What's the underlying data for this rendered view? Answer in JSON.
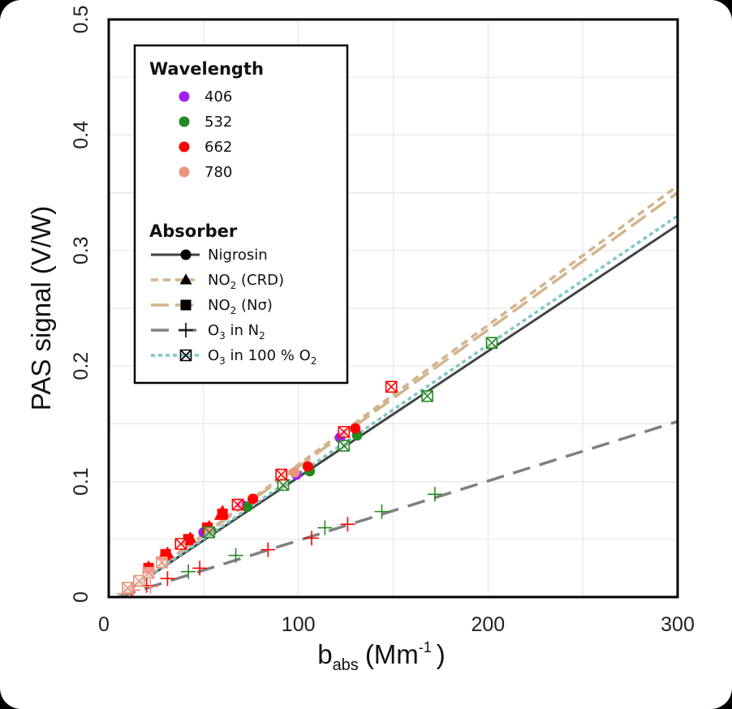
{
  "chart_data": {
    "type": "scatter",
    "xlabel": "b",
    "xlabel_sub": "abs",
    "xlabel_unit_prefix": "(Mm",
    "xlabel_unit_sup": "-1",
    "xlabel_unit_suffix": ")",
    "ylabel": "PAS signal (V/W)",
    "xlim": [
      0,
      300
    ],
    "ylim": [
      0,
      0.5
    ],
    "x_ticks": [
      "0",
      "100",
      "200",
      "300"
    ],
    "y_ticks": [
      "0",
      "0.1",
      "0.2",
      "0.3",
      "0.4",
      "0.5"
    ],
    "x_tick_values": [
      0,
      100,
      200,
      300
    ],
    "y_tick_values": [
      0,
      0.1,
      0.2,
      0.3,
      0.4,
      0.5
    ],
    "grid": true,
    "legend_placement": "top-left",
    "colors": {
      "406": "#a020f0",
      "532": "#228b22",
      "662": "#ff0000",
      "780": "#e9967a",
      "nigrosin_line": "#444444",
      "no2_line": "#d2b48c",
      "o3_n2_line": "#808080",
      "o3_o2_line": "#7ec8c8"
    },
    "legend": {
      "wavelength_title": "Wavelength",
      "wavelengths": [
        "406",
        "532",
        "662",
        "780"
      ],
      "absorber_title": "Absorber",
      "absorbers": [
        {
          "key": "nigrosin",
          "label": "Nigrosin"
        },
        {
          "key": "no2_crd",
          "label_main": "NO",
          "label_sub": "2",
          "label_rest": " (CRD)"
        },
        {
          "key": "no2_ns",
          "label_main": "NO",
          "label_sub": "2",
          "label_rest": " (Nσ)"
        },
        {
          "key": "o3_n2",
          "label_main": "O",
          "label_sub": "3",
          "label_mid": " in N",
          "label_sub2": "2"
        },
        {
          "key": "o3_o2",
          "label_main": "O",
          "label_sub": "3",
          "label_mid": " in 100 % O",
          "label_sub2": "2"
        }
      ]
    },
    "fit_lines": [
      {
        "absorber": "nigrosin",
        "style": "solid",
        "x": [
          5,
          300
        ],
        "y": [
          0.0,
          0.322
        ]
      },
      {
        "absorber": "no2_crd",
        "style": "dashed",
        "x": [
          5,
          300
        ],
        "y": [
          0.0,
          0.356
        ]
      },
      {
        "absorber": "no2_ns",
        "style": "longdash",
        "x": [
          5,
          300
        ],
        "y": [
          0.0,
          0.35
        ]
      },
      {
        "absorber": "o3_n2",
        "style": "longdash",
        "x": [
          5,
          300
        ],
        "y": [
          0.0,
          0.152
        ]
      },
      {
        "absorber": "o3_o2",
        "style": "dotted",
        "x": [
          5,
          300
        ],
        "y": [
          0.0,
          0.33
        ]
      }
    ],
    "series": [
      {
        "absorber": "nigrosin",
        "wavelength": "406",
        "x": [
          50,
          70,
          99,
          122
        ],
        "y": [
          0.056,
          0.08,
          0.106,
          0.138
        ]
      },
      {
        "absorber": "nigrosin",
        "wavelength": "532",
        "x": [
          54,
          73,
          106,
          131
        ],
        "y": [
          0.057,
          0.078,
          0.109,
          0.14
        ]
      },
      {
        "absorber": "nigrosin",
        "wavelength": "662",
        "x": [
          76,
          105,
          130
        ],
        "y": [
          0.085,
          0.113,
          0.146
        ]
      },
      {
        "absorber": "nigrosin",
        "wavelength": "780",
        "x": [
          98
        ],
        "y": [
          0.108
        ]
      },
      {
        "absorber": "no2_crd",
        "wavelength": "662",
        "x": [
          21,
          29,
          31,
          41,
          43,
          52,
          53,
          59,
          60
        ],
        "y": [
          0.026,
          0.036,
          0.038,
          0.049,
          0.051,
          0.059,
          0.061,
          0.071,
          0.074
        ]
      },
      {
        "absorber": "no2_ns",
        "wavelength": "662",
        "x": [
          21,
          30,
          42,
          52,
          60
        ],
        "y": [
          0.025,
          0.037,
          0.05,
          0.06,
          0.072
        ]
      },
      {
        "absorber": "o3_n2",
        "wavelength": "532",
        "x": [
          42,
          67,
          114,
          144,
          172
        ],
        "y": [
          0.022,
          0.036,
          0.06,
          0.074,
          0.089
        ]
      },
      {
        "absorber": "o3_n2",
        "wavelength": "662",
        "x": [
          12,
          20,
          31,
          48,
          84,
          107,
          126
        ],
        "y": [
          0.006,
          0.01,
          0.016,
          0.025,
          0.041,
          0.051,
          0.063
        ]
      },
      {
        "absorber": "o3_n2",
        "wavelength": "780",
        "x": [
          8,
          13,
          22
        ],
        "y": [
          0.003,
          0.006,
          0.009
        ]
      },
      {
        "absorber": "o3_o2",
        "wavelength": "532",
        "x": [
          53,
          92,
          124,
          168,
          202
        ],
        "y": [
          0.056,
          0.097,
          0.131,
          0.174,
          0.22
        ]
      },
      {
        "absorber": "o3_o2",
        "wavelength": "662",
        "x": [
          38,
          68,
          91,
          124,
          149
        ],
        "y": [
          0.046,
          0.08,
          0.106,
          0.143,
          0.182
        ]
      },
      {
        "absorber": "o3_o2",
        "wavelength": "780",
        "x": [
          10,
          16,
          21,
          28
        ],
        "y": [
          0.008,
          0.014,
          0.021,
          0.03
        ]
      }
    ]
  }
}
